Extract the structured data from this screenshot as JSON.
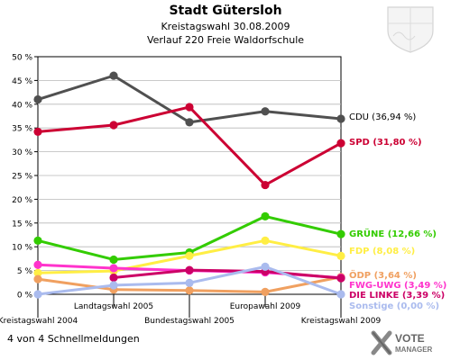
{
  "header": {
    "title": "Stadt Gütersloh",
    "subtitle1": "Kreistagswahl 30.08.2009",
    "subtitle2": "Verlauf 220 Freie Waldorfschule"
  },
  "footer": {
    "note": "4 von 4 Schnellmeldungen",
    "logo_line1": "VOTE",
    "logo_line2": "MANAGER"
  },
  "chart_data": {
    "type": "line",
    "categories": [
      "Kreistagswahl 2004",
      "Landtagswahl 2005",
      "Bundestagswahl 2005",
      "Europawahl 2009",
      "Kreistagswahl 2009"
    ],
    "ylim": [
      0,
      50
    ],
    "yticks": [
      "0 %",
      "5 %",
      "10 %",
      "15 %",
      "20 %",
      "25 %",
      "30 %",
      "35 %",
      "40 %",
      "45 %",
      "50 %"
    ],
    "grid": true,
    "series": [
      {
        "name": "CDU",
        "label": "CDU (36,94 %)",
        "color": "#505050",
        "values": [
          41.0,
          46.0,
          36.2,
          38.5,
          36.94
        ]
      },
      {
        "name": "SPD",
        "label": "SPD (31,80 %)",
        "color": "#cc0033",
        "values": [
          34.2,
          35.6,
          39.4,
          23.0,
          31.8
        ]
      },
      {
        "name": "GRÜNE",
        "label": "GRÜNE (12,66 %)",
        "color": "#33cc00",
        "values": [
          11.3,
          7.3,
          8.8,
          16.4,
          12.66
        ]
      },
      {
        "name": "FDP",
        "label": "FDP (8,08 %)",
        "color": "#ffee44",
        "values": [
          4.5,
          4.9,
          8.1,
          11.3,
          8.08
        ]
      },
      {
        "name": "ÖDP",
        "label": "ÖDP (3,64 %)",
        "color": "#f0a060",
        "values": [
          3.2,
          1.0,
          0.8,
          0.5,
          3.64
        ]
      },
      {
        "name": "FWG-UWG",
        "label": "FWG-UWG (3,49 %)",
        "color": "#ff33cc",
        "values": [
          6.2,
          5.5,
          5.0,
          4.6,
          3.49
        ]
      },
      {
        "name": "DIE LINKE",
        "label": "DIE LINKE (3,39 %)",
        "color": "#cc0066",
        "values": [
          null,
          3.5,
          5.1,
          4.8,
          3.39
        ]
      },
      {
        "name": "Sonstige",
        "label": "Sonstige (0,00 %)",
        "color": "#aabbee",
        "values": [
          0.0,
          1.9,
          2.4,
          5.8,
          0.0
        ]
      }
    ]
  }
}
